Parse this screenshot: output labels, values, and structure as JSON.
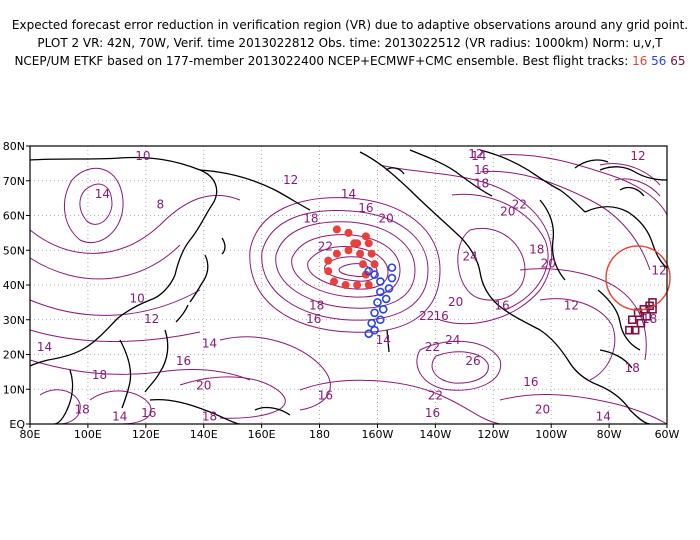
{
  "header": {
    "line1": "Expected forecast error reduction in verification region (VR) due to adaptive observations around any grid point.",
    "line2": "PLOT 2 VR: 42N, 70W, Verif. time 2013022812 Obs. time: 2013022512 (VR radius: 1000km) Norm: u,v,T",
    "line3_prefix": "NCEP/UM ETKF based on 177-member 2013022400 NCEP+ECMWF+CMC ensemble. Best flight tracks:",
    "track_a": "16",
    "track_b": "56",
    "track_c": "65"
  },
  "map": {
    "lon_range": [
      80,
      300
    ],
    "lat_range": [
      0,
      80
    ],
    "x_ticks": [
      "80E",
      "100E",
      "120E",
      "140E",
      "160E",
      "180",
      "160W",
      "140W",
      "120W",
      "100W",
      "80W",
      "60W"
    ],
    "y_ticks": [
      "EQ",
      "10N",
      "20N",
      "30N",
      "40N",
      "50N",
      "60N",
      "70N",
      "80N"
    ],
    "contour_labels": [
      {
        "text": "10",
        "lon": 119,
        "lat": 76
      },
      {
        "text": "14",
        "lon": 105,
        "lat": 65
      },
      {
        "text": "8",
        "lon": 125,
        "lat": 62
      },
      {
        "text": "12",
        "lon": 170,
        "lat": 69
      },
      {
        "text": "14",
        "lon": 190,
        "lat": 65
      },
      {
        "text": "16",
        "lon": 196,
        "lat": 61
      },
      {
        "text": "18",
        "lon": 177,
        "lat": 58
      },
      {
        "text": "20",
        "lon": 203,
        "lat": 58
      },
      {
        "text": "22",
        "lon": 182,
        "lat": 50
      },
      {
        "text": "10",
        "lon": 117,
        "lat": 35
      },
      {
        "text": "12",
        "lon": 122,
        "lat": 29
      },
      {
        "text": "14",
        "lon": 142,
        "lat": 22
      },
      {
        "text": "16",
        "lon": 133,
        "lat": 17
      },
      {
        "text": "18",
        "lon": 179,
        "lat": 33
      },
      {
        "text": "16",
        "lon": 178,
        "lat": 29
      },
      {
        "text": "14",
        "lon": 202,
        "lat": 23
      },
      {
        "text": "20",
        "lon": 227,
        "lat": 34
      },
      {
        "text": "16",
        "lon": 222,
        "lat": 30
      },
      {
        "text": "22",
        "lon": 219,
        "lat": 21
      },
      {
        "text": "24",
        "lon": 232,
        "lat": 47
      },
      {
        "text": "26",
        "lon": 233,
        "lat": 17
      },
      {
        "text": "24",
        "lon": 226,
        "lat": 23
      },
      {
        "text": "16",
        "lon": 243,
        "lat": 33
      },
      {
        "text": "20",
        "lon": 259,
        "lat": 45
      },
      {
        "text": "12",
        "lon": 267,
        "lat": 33
      },
      {
        "text": "16",
        "lon": 253,
        "lat": 11
      },
      {
        "text": "18",
        "lon": 255,
        "lat": 49
      },
      {
        "text": "22",
        "lon": 249,
        "lat": 62
      },
      {
        "text": "20",
        "lon": 245,
        "lat": 60
      },
      {
        "text": "18",
        "lon": 236,
        "lat": 68
      },
      {
        "text": "16",
        "lon": 236,
        "lat": 72
      },
      {
        "text": "14",
        "lon": 235,
        "lat": 76
      },
      {
        "text": "12",
        "lon": 234,
        "lat": 78
      },
      {
        "text": "12",
        "lon": 290,
        "lat": 76
      },
      {
        "text": "12",
        "lon": 300,
        "lat": 43
      },
      {
        "text": "18",
        "lon": 294,
        "lat": 29
      },
      {
        "text": "18",
        "lon": 288,
        "lat": 15
      },
      {
        "text": "14",
        "lon": 278,
        "lat": 1
      },
      {
        "text": "20",
        "lon": 140,
        "lat": 10
      },
      {
        "text": "18",
        "lon": 104,
        "lat": 13
      },
      {
        "text": "14",
        "lon": 85,
        "lat": 21
      },
      {
        "text": "18",
        "lon": 98,
        "lat": 3
      },
      {
        "text": "14",
        "lon": 111,
        "lat": 1
      },
      {
        "text": "16",
        "lon": 121,
        "lat": 2
      },
      {
        "text": "18",
        "lon": 142,
        "lat": 1
      },
      {
        "text": "16",
        "lon": 182,
        "lat": 7
      },
      {
        "text": "22",
        "lon": 220,
        "lat": 7
      },
      {
        "text": "16",
        "lon": 219,
        "lat": 2
      },
      {
        "text": "20",
        "lon": 257,
        "lat": 3
      },
      {
        "text": "22",
        "lon": 217,
        "lat": 30
      }
    ],
    "track_16_points": [
      [
        186,
        56
      ],
      [
        190,
        55
      ],
      [
        192,
        52
      ],
      [
        194,
        49
      ],
      [
        195,
        46
      ],
      [
        196,
        43
      ],
      [
        197,
        40
      ],
      [
        193,
        40
      ],
      [
        189,
        40
      ],
      [
        185,
        41
      ],
      [
        183,
        44
      ],
      [
        183,
        47
      ],
      [
        186,
        49
      ],
      [
        190,
        50
      ],
      [
        193,
        52
      ],
      [
        196,
        54
      ],
      [
        197,
        52
      ],
      [
        198,
        49
      ],
      [
        199,
        46
      ]
    ],
    "track_56_points": [
      [
        197,
        44
      ],
      [
        199,
        43
      ],
      [
        201,
        41
      ],
      [
        201,
        38
      ],
      [
        200,
        35
      ],
      [
        199,
        32
      ],
      [
        198,
        29
      ],
      [
        197,
        26
      ],
      [
        199,
        27
      ],
      [
        201,
        30
      ],
      [
        202,
        33
      ],
      [
        203,
        36
      ],
      [
        204,
        39
      ],
      [
        205,
        42
      ],
      [
        205,
        45
      ]
    ],
    "track_65_points": [
      [
        287,
        27
      ],
      [
        288,
        30
      ],
      [
        290,
        32
      ],
      [
        292,
        33
      ],
      [
        294,
        34
      ],
      [
        295,
        35
      ],
      [
        295,
        33
      ],
      [
        293,
        31
      ],
      [
        291,
        29
      ],
      [
        289,
        27
      ]
    ],
    "verification_circle": {
      "lon": 290,
      "lat": 42
    }
  }
}
